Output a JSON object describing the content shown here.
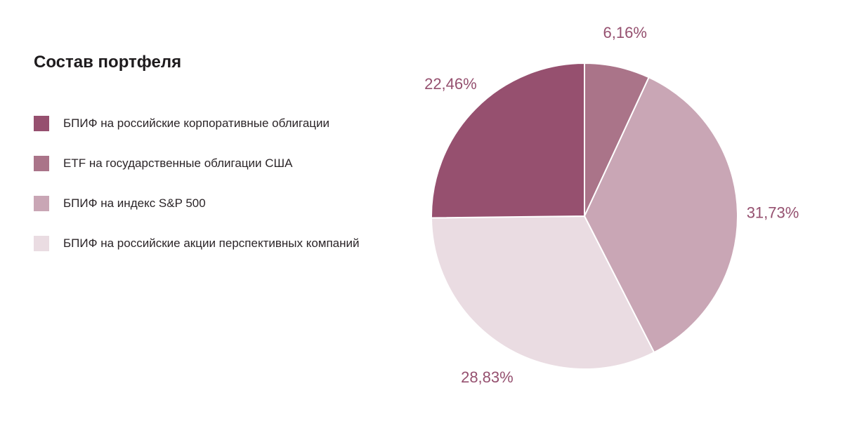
{
  "title": "Состав портфеля",
  "chart_data": {
    "type": "pie",
    "title": "Состав портфеля",
    "legend_position": "left",
    "slices": [
      {
        "label": "БПИФ на российские корпоративные облигации",
        "value": 22.46,
        "value_label": "22,46%",
        "color": "#96506f"
      },
      {
        "label": "ETF на государственные облигации США",
        "value": 6.16,
        "value_label": "6,16%",
        "color": "#aa7489"
      },
      {
        "label": "БПИФ на индекс S&P 500",
        "value": 31.73,
        "value_label": "31,73%",
        "color": "#c9a6b5"
      },
      {
        "label": "БПИФ на российские акции перспективных компаний",
        "value": 28.83,
        "value_label": "28,83%",
        "color": "#eadce2"
      }
    ],
    "draw_order": [
      1,
      2,
      3,
      0
    ],
    "label_color": "#95506f"
  }
}
